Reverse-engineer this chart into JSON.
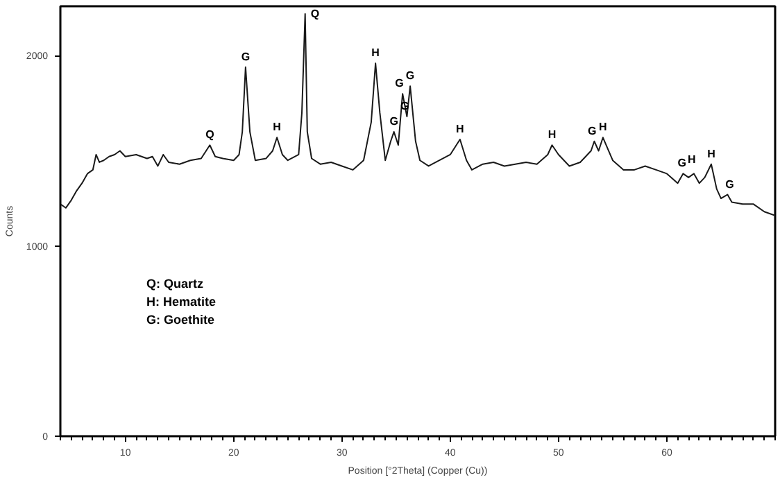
{
  "chart_data": {
    "type": "line",
    "xlabel": "Position [°2Theta] (Copper (Cu))",
    "ylabel": "Counts",
    "xlim": [
      4,
      70
    ],
    "ylim": [
      0,
      2260
    ],
    "xticks": [
      10,
      20,
      30,
      40,
      50,
      60
    ],
    "yticks": [
      0,
      1000,
      2000
    ],
    "grid": false,
    "marker": "none",
    "line_style": "solid",
    "series": [
      {
        "color": "#1a1a1a",
        "x": [
          4,
          4.5,
          5,
          5.5,
          6,
          6.5,
          7,
          7.3,
          7.6,
          8,
          8.5,
          9,
          9.5,
          10,
          11,
          12,
          12.5,
          13,
          13.5,
          14,
          15,
          16,
          17,
          17.8,
          18.3,
          19,
          20,
          20.5,
          20.8,
          21.1,
          21.5,
          22,
          23,
          23.6,
          24,
          24.5,
          25,
          26,
          26.3,
          26.6,
          26.8,
          27.2,
          28,
          29,
          30,
          31,
          32,
          32.7,
          33.1,
          33.5,
          34,
          34.5,
          34.8,
          35.2,
          35.6,
          36,
          36.3,
          36.8,
          37.2,
          38,
          39,
          40,
          40.9,
          41.5,
          42,
          43,
          44,
          45,
          46,
          47,
          48,
          49,
          49.4,
          50,
          51,
          52,
          53,
          53.3,
          53.7,
          54.1,
          55,
          56,
          57,
          58,
          59,
          60,
          61,
          61.5,
          62,
          62.5,
          63,
          63.5,
          64.1,
          64.6,
          65,
          65.6,
          66,
          67,
          68,
          69,
          70
        ],
        "values": [
          1220,
          1200,
          1240,
          1290,
          1330,
          1380,
          1400,
          1480,
          1440,
          1450,
          1470,
          1480,
          1500,
          1470,
          1480,
          1460,
          1470,
          1420,
          1480,
          1440,
          1430,
          1450,
          1460,
          1530,
          1470,
          1460,
          1450,
          1480,
          1600,
          1940,
          1600,
          1450,
          1460,
          1500,
          1570,
          1480,
          1450,
          1480,
          1700,
          2220,
          1600,
          1460,
          1430,
          1440,
          1420,
          1400,
          1450,
          1650,
          1960,
          1700,
          1450,
          1550,
          1600,
          1530,
          1800,
          1680,
          1840,
          1550,
          1450,
          1420,
          1450,
          1480,
          1560,
          1450,
          1400,
          1430,
          1440,
          1420,
          1430,
          1440,
          1430,
          1480,
          1530,
          1480,
          1420,
          1440,
          1500,
          1550,
          1500,
          1570,
          1450,
          1400,
          1400,
          1420,
          1400,
          1380,
          1330,
          1380,
          1360,
          1380,
          1330,
          1360,
          1430,
          1300,
          1250,
          1270,
          1230,
          1220,
          1220,
          1180,
          1160
        ]
      }
    ],
    "annotations": [
      {
        "text": "Q",
        "x": 17.8,
        "y": 1530
      },
      {
        "text": "G",
        "x": 21.1,
        "y": 1940
      },
      {
        "text": "H",
        "x": 24,
        "y": 1570
      },
      {
        "text": "Q",
        "x": 26.6,
        "y": 2220
      },
      {
        "text": "H",
        "x": 33.1,
        "y": 1960
      },
      {
        "text": "G",
        "x": 34.8,
        "y": 1600
      },
      {
        "text": "G",
        "x": 35.3,
        "y": 1800
      },
      {
        "text": "G",
        "x": 35.8,
        "y": 1680
      },
      {
        "text": "G",
        "x": 36.3,
        "y": 1840
      },
      {
        "text": "H",
        "x": 40.9,
        "y": 1560
      },
      {
        "text": "H",
        "x": 49.4,
        "y": 1530
      },
      {
        "text": "G",
        "x": 53.1,
        "y": 1550
      },
      {
        "text": "H",
        "x": 54.1,
        "y": 1570
      },
      {
        "text": "G",
        "x": 61.4,
        "y": 1380
      },
      {
        "text": "H",
        "x": 62.3,
        "y": 1400
      },
      {
        "text": "H",
        "x": 64.1,
        "y": 1430
      },
      {
        "text": "G",
        "x": 65.8,
        "y": 1270
      },
      "Q: Quartz",
      "H: Hematite",
      "G: Goethite"
    ]
  }
}
